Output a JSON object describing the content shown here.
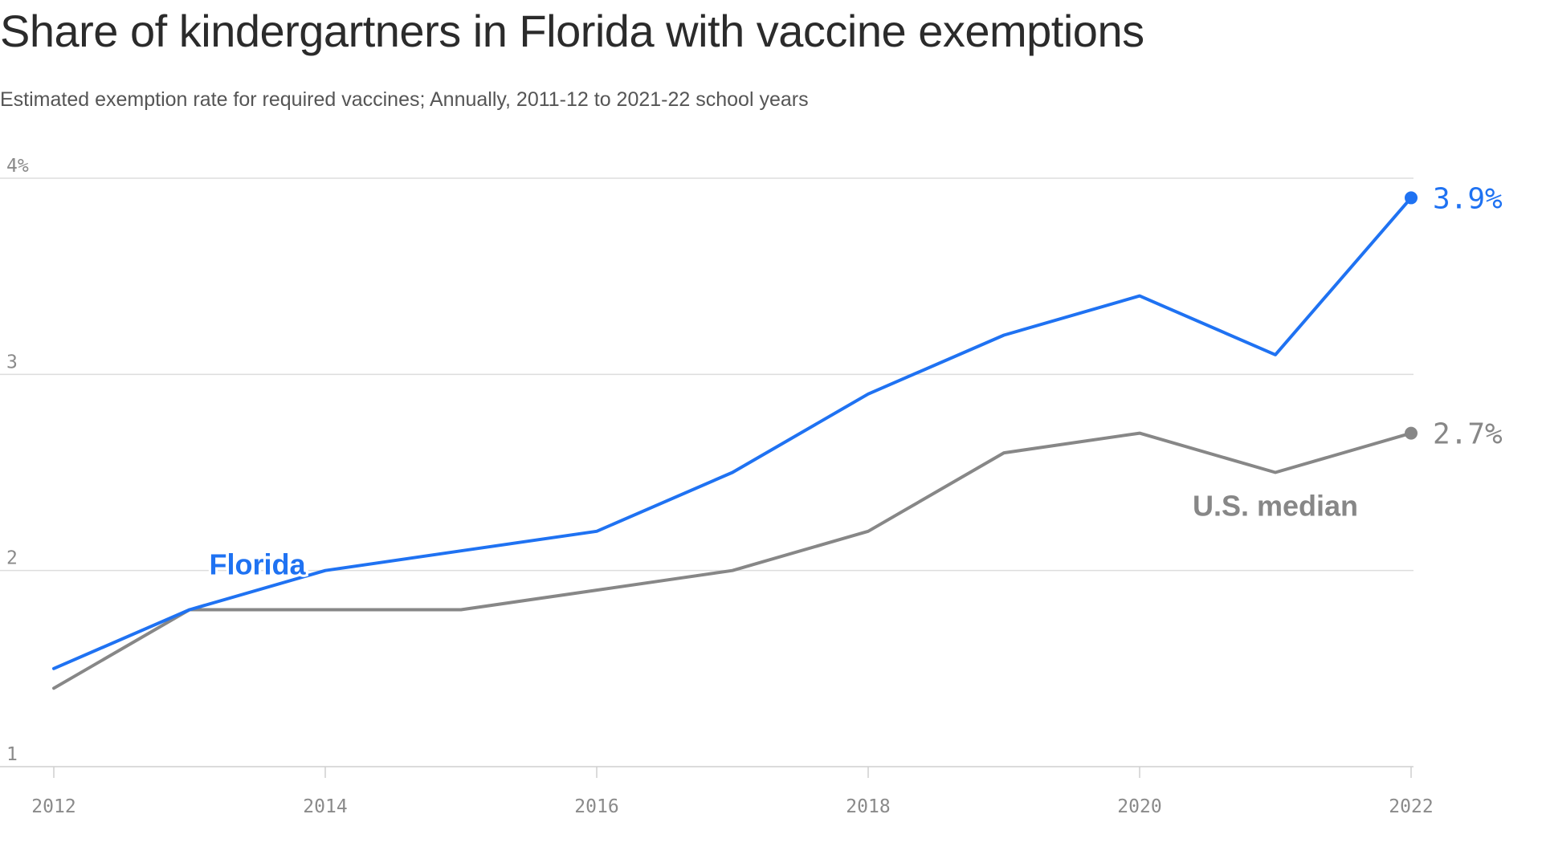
{
  "chart_data": {
    "type": "line",
    "title": "Share of kindergartners in Florida with vaccine exemptions",
    "subtitle": "Estimated exemption rate for required vaccines; Annually, 2011-12 to 2021-22 school years",
    "x": [
      2012,
      2013,
      2014,
      2015,
      2016,
      2017,
      2018,
      2019,
      2020,
      2021,
      2022
    ],
    "xticks": [
      "2012",
      "2014",
      "2016",
      "2018",
      "2020",
      "2022"
    ],
    "yticks": [
      "1",
      "2",
      "3",
      "4%"
    ],
    "ylim": [
      1,
      4
    ],
    "grid": true,
    "series": [
      {
        "name": "Florida",
        "color": "#1f72f2",
        "values": [
          1.5,
          1.8,
          2.0,
          2.1,
          2.2,
          2.5,
          2.9,
          3.2,
          3.4,
          3.1,
          3.9
        ],
        "end_label": "3.9%"
      },
      {
        "name": "U.S. median",
        "color": "#878787",
        "values": [
          1.4,
          1.8,
          1.8,
          1.8,
          1.9,
          2.0,
          2.2,
          2.6,
          2.7,
          2.5,
          2.7
        ],
        "end_label": "2.7%"
      }
    ]
  }
}
